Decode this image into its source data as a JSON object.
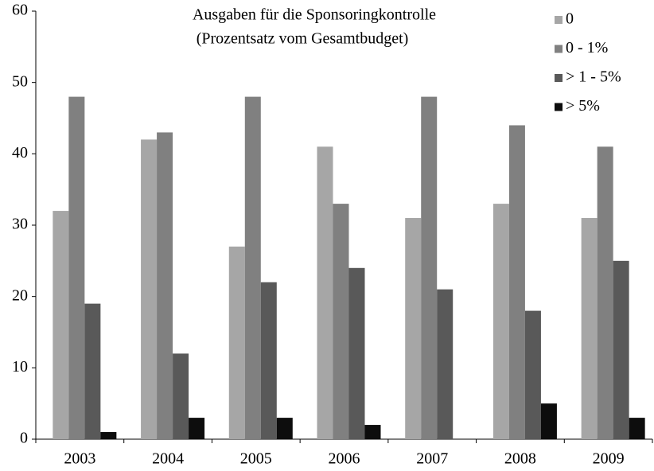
{
  "chart_data": {
    "type": "bar",
    "title": "Ausgaben für die Sponsoringkontrolle",
    "subtitle": "(Prozentsatz vom Gesamtbudget)",
    "categories": [
      "2003",
      "2004",
      "2005",
      "2006",
      "2007",
      "2008",
      "2009"
    ],
    "series": [
      {
        "name": "0",
        "color": "#a6a6a6",
        "values": [
          32,
          42,
          27,
          41,
          31,
          33,
          31
        ]
      },
      {
        "name": "0 - 1%",
        "color": "#808080",
        "values": [
          48,
          43,
          48,
          33,
          48,
          44,
          41
        ]
      },
      {
        "name": "> 1 - 5%",
        "color": "#595959",
        "values": [
          19,
          12,
          22,
          24,
          21,
          18,
          25
        ]
      },
      {
        "name": "> 5%",
        "color": "#0d0d0d",
        "values": [
          1,
          3,
          3,
          2,
          0,
          5,
          3
        ]
      }
    ],
    "ylim": [
      0,
      60
    ],
    "yticks": [
      0,
      10,
      20,
      30,
      40,
      50,
      60
    ],
    "grid": false,
    "legend": "top-right"
  }
}
